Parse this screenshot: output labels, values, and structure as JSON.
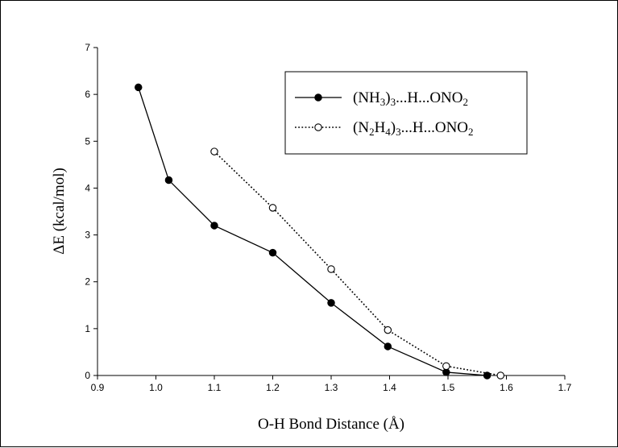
{
  "chart_data": {
    "type": "line",
    "xlabel": "O-H Bond Distance (Å)",
    "ylabel": "ΔE (kcal/mol)",
    "xlim": [
      0.9,
      1.7
    ],
    "ylim": [
      0,
      7
    ],
    "x_ticks": [
      "0.9",
      "1.0",
      "1.1",
      "1.2",
      "1.3",
      "1.4",
      "1.5",
      "1.6",
      "1.7"
    ],
    "y_ticks": [
      "0",
      "1",
      "2",
      "3",
      "4",
      "5",
      "6",
      "7"
    ],
    "grid": false,
    "legend_position": "top-right",
    "series": [
      {
        "name": "(NH3)3...H...ONO2",
        "label_parts": [
          [
            "(NH",
            ""
          ],
          [
            "3",
            "sub"
          ],
          [
            ")",
            ""
          ],
          [
            "3",
            "sub"
          ],
          [
            "...H...ONO",
            ""
          ],
          [
            "2",
            "sub"
          ]
        ],
        "marker": "filled-circle",
        "line_style": "solid",
        "x": [
          0.97,
          1.022,
          1.1,
          1.2,
          1.3,
          1.397,
          1.497,
          1.567
        ],
        "y": [
          6.15,
          4.17,
          3.2,
          2.62,
          1.55,
          0.62,
          0.07,
          0.0
        ]
      },
      {
        "name": "(N2H4)3...H...ONO2",
        "label_parts": [
          [
            "(N",
            ""
          ],
          [
            "2",
            "sub"
          ],
          [
            "H",
            ""
          ],
          [
            "4",
            "sub"
          ],
          [
            ")",
            ""
          ],
          [
            "3",
            "sub"
          ],
          [
            "...H...ONO",
            ""
          ],
          [
            "2",
            "sub"
          ]
        ],
        "marker": "open-circle",
        "line_style": "dotted",
        "x": [
          1.1,
          1.2,
          1.3,
          1.397,
          1.497,
          1.59
        ],
        "y": [
          4.78,
          3.58,
          2.27,
          0.97,
          0.2,
          0.0
        ]
      }
    ]
  }
}
